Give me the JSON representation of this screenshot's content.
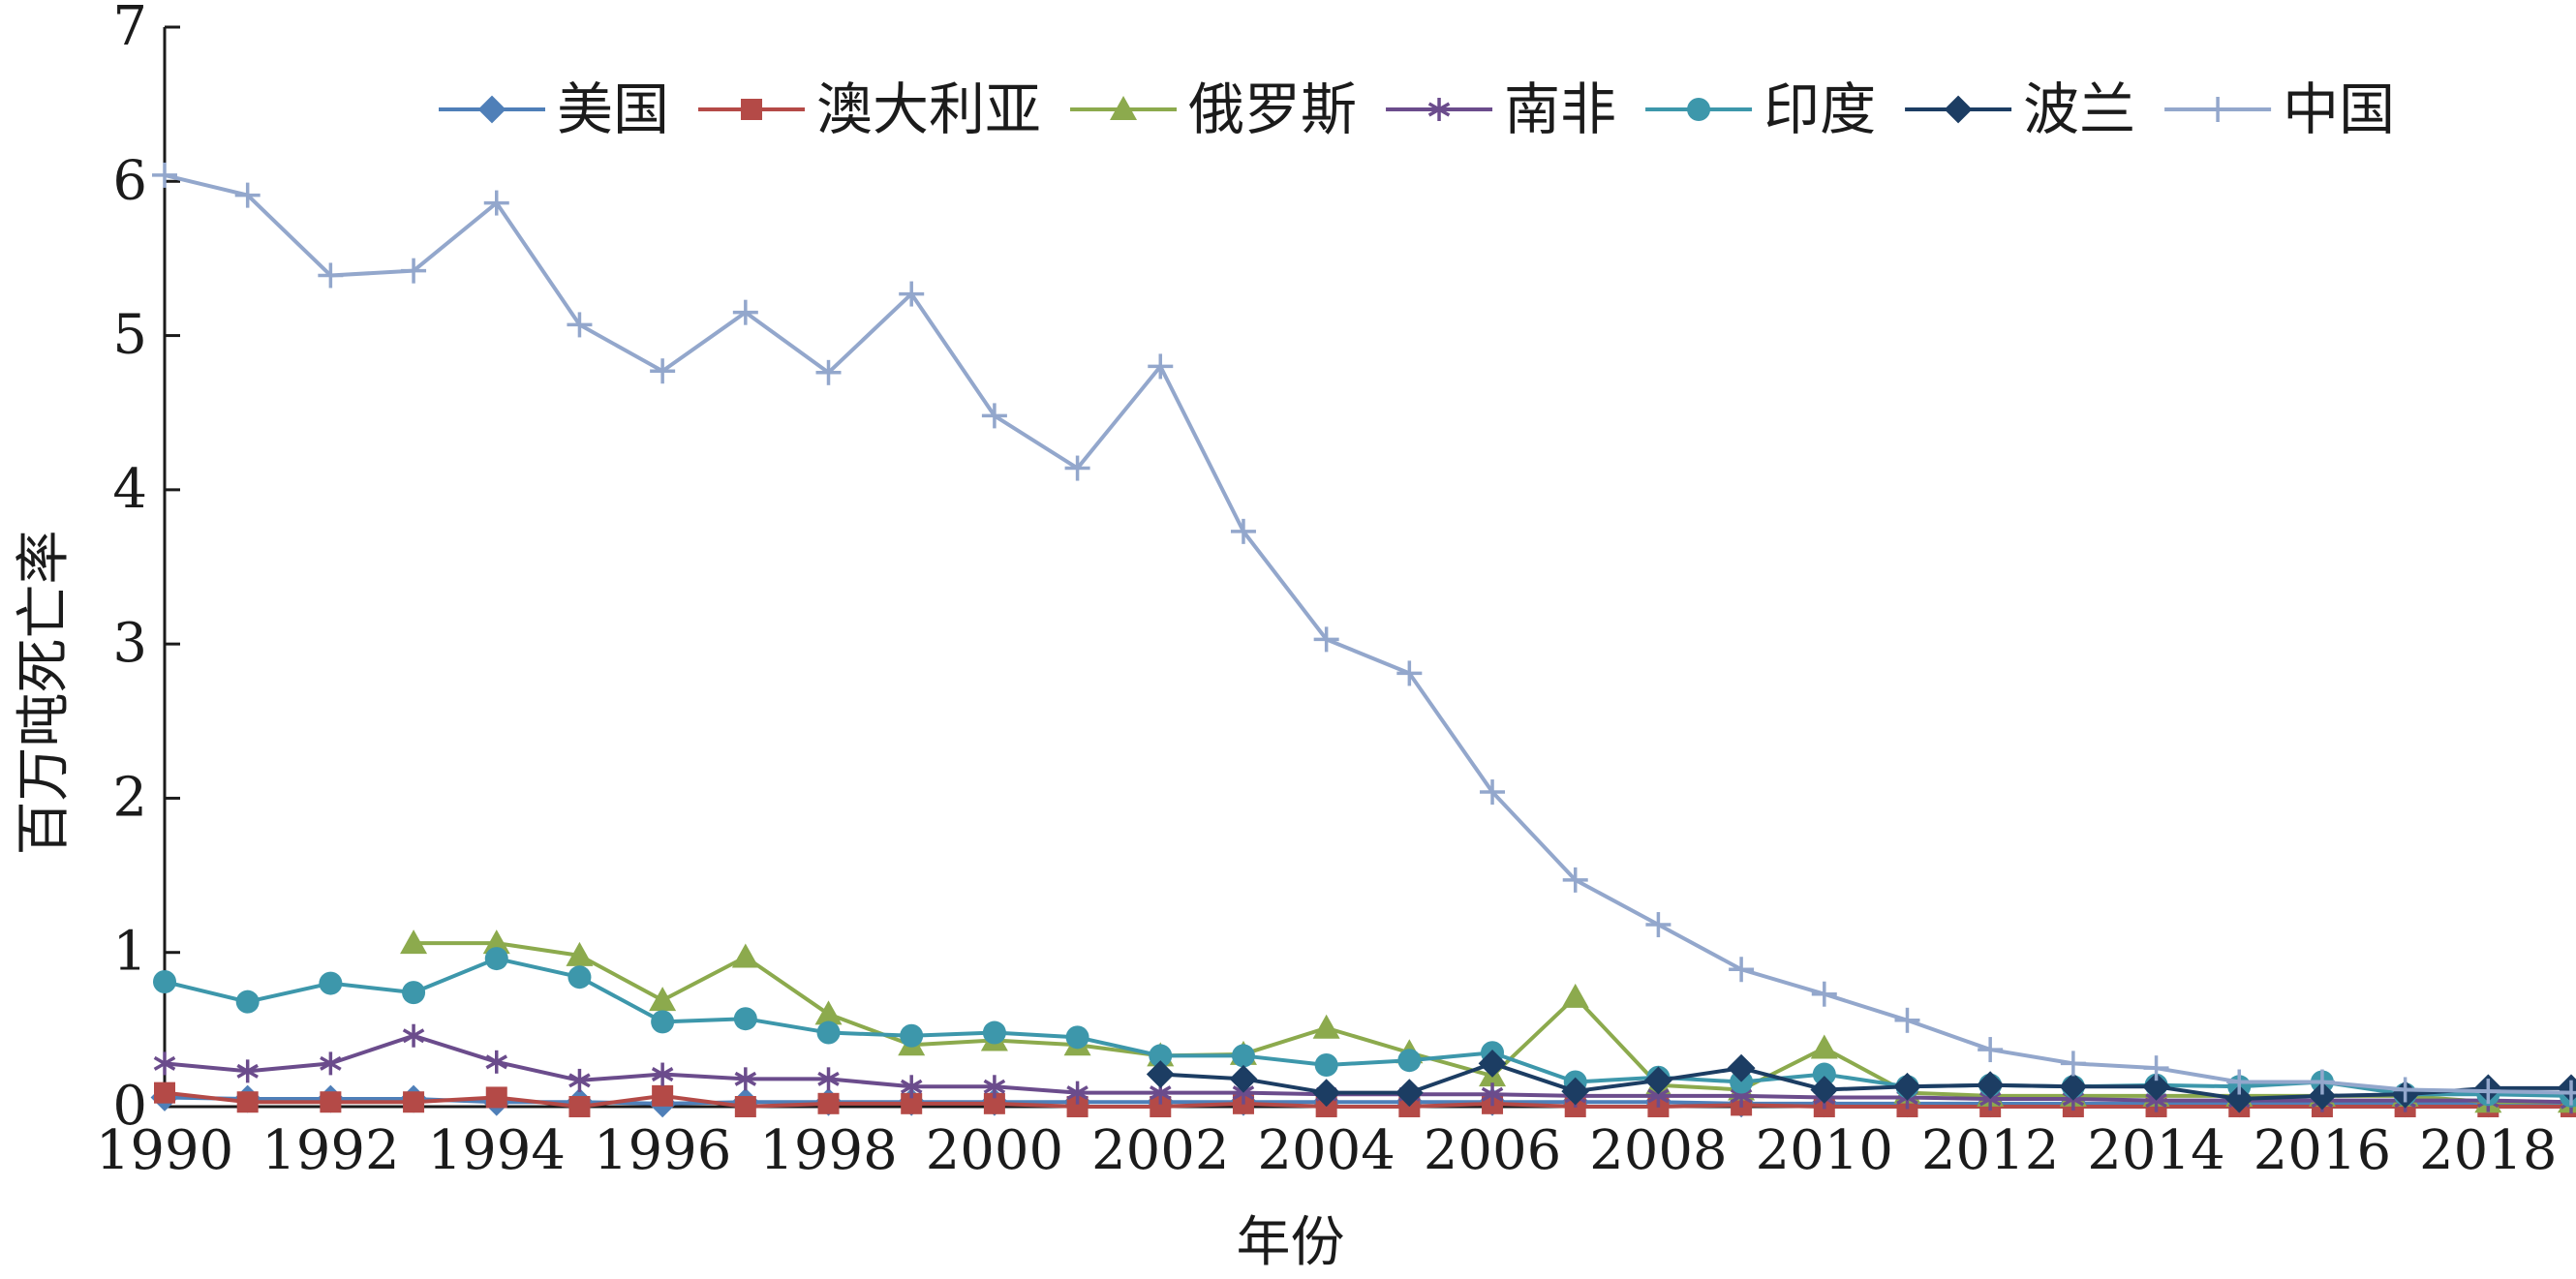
{
  "chart_data": {
    "type": "line",
    "title": "",
    "xlabel": "年份",
    "ylabel": "百万吨死亡率",
    "xlim": [
      1990,
      2019
    ],
    "ylim": [
      0,
      7
    ],
    "x_ticks": [
      1990,
      1992,
      1994,
      1996,
      1998,
      2000,
      2002,
      2004,
      2006,
      2008,
      2010,
      2012,
      2014,
      2016,
      2018
    ],
    "y_ticks": [
      0,
      1,
      2,
      3,
      4,
      5,
      6,
      7
    ],
    "grid": false,
    "legend_position": "top",
    "series": [
      {
        "name": "美国",
        "color": "#4f7fb8",
        "marker": "diamond",
        "x": [
          1990,
          1991,
          1992,
          1993,
          1994,
          1995,
          1996,
          1997,
          1998,
          1999,
          2000,
          2001,
          2002,
          2003,
          2004,
          2005,
          2006,
          2007,
          2008,
          2009,
          2010,
          2011,
          2012,
          2013,
          2014,
          2015,
          2016,
          2017,
          2018,
          2019
        ],
        "values": [
          0.06,
          0.05,
          0.05,
          0.05,
          0.03,
          0.03,
          0.02,
          0.03,
          0.03,
          0.03,
          0.03,
          0.03,
          0.03,
          0.03,
          0.03,
          0.03,
          0.03,
          0.03,
          0.03,
          0.02,
          0.02,
          0.02,
          0.02,
          0.02,
          0.02,
          0.02,
          0.02,
          0.02,
          0.02,
          0.02
        ]
      },
      {
        "name": "澳大利亚",
        "color": "#b44a47",
        "marker": "square",
        "x": [
          1990,
          1991,
          1992,
          1993,
          1994,
          1995,
          1996,
          1997,
          1998,
          1999,
          2000,
          2001,
          2002,
          2003,
          2004,
          2005,
          2006,
          2007,
          2008,
          2009,
          2010,
          2011,
          2012,
          2013,
          2014,
          2015,
          2016,
          2017,
          2018,
          2019
        ],
        "values": [
          0.09,
          0.03,
          0.03,
          0.03,
          0.06,
          0.0,
          0.07,
          0.0,
          0.02,
          0.02,
          0.02,
          0.0,
          0.0,
          0.02,
          0.0,
          0.0,
          0.02,
          0.0,
          0.0,
          0.01,
          0.0,
          0.0,
          0.0,
          0.0,
          0.0,
          0.0,
          0.0,
          0.0,
          0.0,
          0.0
        ]
      },
      {
        "name": "俄罗斯",
        "color": "#8caa4d",
        "marker": "triangle",
        "x": [
          1993,
          1994,
          1995,
          1996,
          1997,
          1998,
          1999,
          2000,
          2001,
          2002,
          2003,
          2004,
          2005,
          2006,
          2007,
          2008,
          2009,
          2010,
          2011,
          2012,
          2013,
          2014,
          2015,
          2016,
          2017,
          2018,
          2019
        ],
        "values": [
          1.06,
          1.06,
          0.98,
          0.69,
          0.97,
          0.6,
          0.4,
          0.43,
          0.4,
          0.33,
          0.34,
          0.51,
          0.35,
          0.2,
          0.71,
          0.14,
          0.11,
          0.38,
          0.09,
          0.07,
          0.07,
          0.07,
          0.07,
          0.07,
          0.07,
          0.03,
          0.03
        ]
      },
      {
        "name": "南非",
        "color": "#6b4c8c",
        "marker": "asterisk",
        "x": [
          1990,
          1991,
          1992,
          1993,
          1994,
          1995,
          1996,
          1997,
          1998,
          1999,
          2000,
          2001,
          2002,
          2003,
          2004,
          2005,
          2006,
          2007,
          2008,
          2009,
          2010,
          2011,
          2012,
          2013,
          2014,
          2015,
          2016,
          2017,
          2018,
          2019
        ],
        "values": [
          0.28,
          0.23,
          0.28,
          0.46,
          0.29,
          0.17,
          0.21,
          0.18,
          0.18,
          0.13,
          0.13,
          0.09,
          0.09,
          0.09,
          0.08,
          0.08,
          0.08,
          0.07,
          0.07,
          0.07,
          0.06,
          0.06,
          0.05,
          0.05,
          0.04,
          0.04,
          0.04,
          0.04,
          0.04,
          0.03
        ]
      },
      {
        "name": "印度",
        "color": "#3d97ab",
        "marker": "circle",
        "x": [
          1990,
          1991,
          1992,
          1993,
          1994,
          1995,
          1996,
          1997,
          1998,
          1999,
          2000,
          2001,
          2002,
          2003,
          2004,
          2005,
          2006,
          2007,
          2008,
          2009,
          2010,
          2011,
          2012,
          2013,
          2014,
          2015,
          2016,
          2017,
          2018,
          2019
        ],
        "values": [
          0.81,
          0.68,
          0.8,
          0.74,
          0.96,
          0.84,
          0.55,
          0.57,
          0.48,
          0.46,
          0.48,
          0.45,
          0.33,
          0.33,
          0.27,
          0.3,
          0.35,
          0.16,
          0.19,
          0.16,
          0.21,
          0.13,
          0.14,
          0.13,
          0.14,
          0.13,
          0.16,
          0.08,
          0.08,
          0.07
        ]
      },
      {
        "name": "波兰",
        "color": "#1c3d63",
        "marker": "diamond",
        "x": [
          2002,
          2003,
          2004,
          2005,
          2006,
          2007,
          2008,
          2009,
          2010,
          2011,
          2012,
          2013,
          2014,
          2015,
          2016,
          2017,
          2018,
          2019
        ],
        "values": [
          0.21,
          0.18,
          0.09,
          0.09,
          0.28,
          0.1,
          0.17,
          0.25,
          0.11,
          0.13,
          0.14,
          0.13,
          0.13,
          0.05,
          0.07,
          0.08,
          0.12,
          0.12
        ]
      },
      {
        "name": "中国",
        "color": "#93a7cc",
        "marker": "plus",
        "x": [
          1990,
          1991,
          1992,
          1993,
          1994,
          1995,
          1996,
          1997,
          1998,
          1999,
          2000,
          2001,
          2002,
          2003,
          2004,
          2005,
          2006,
          2007,
          2008,
          2009,
          2010,
          2011,
          2012,
          2013,
          2014,
          2015,
          2016,
          2017,
          2018,
          2019
        ],
        "values": [
          6.04,
          5.91,
          5.39,
          5.42,
          5.86,
          5.07,
          4.77,
          5.15,
          4.76,
          5.27,
          4.48,
          4.14,
          4.8,
          3.73,
          3.03,
          2.81,
          2.04,
          1.47,
          1.18,
          0.89,
          0.73,
          0.56,
          0.37,
          0.28,
          0.25,
          0.16,
          0.16,
          0.11,
          0.1,
          0.09
        ]
      }
    ]
  }
}
